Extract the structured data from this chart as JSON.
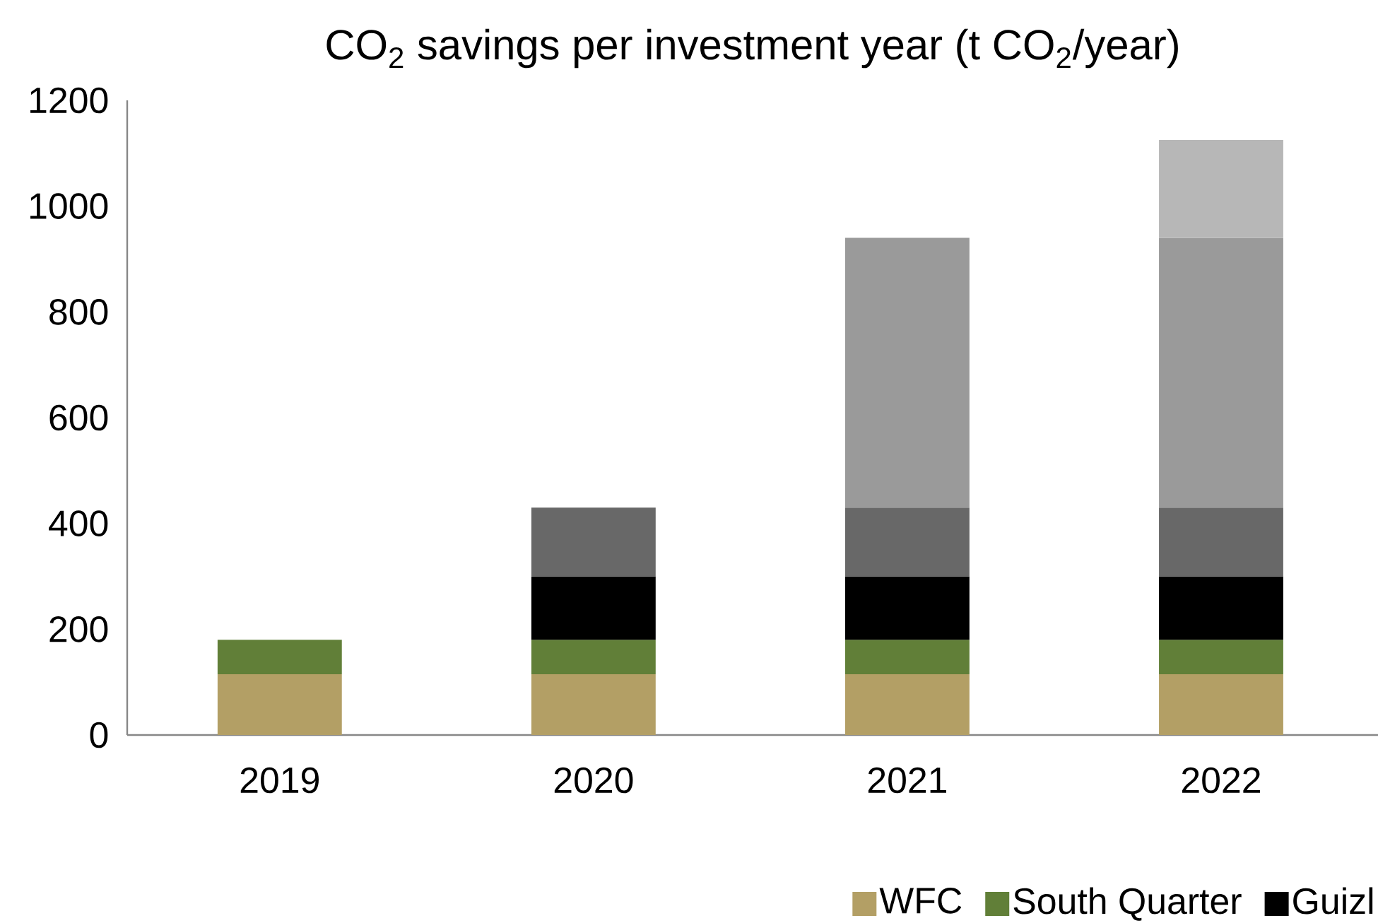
{
  "chart_data": {
    "type": "bar",
    "stacked": true,
    "title": "CO$_{2}$ savings per investment year (t CO$_{2}$/year)",
    "categories": [
      "2019",
      "2020",
      "2021",
      "2022"
    ],
    "series": [
      {
        "name": "WFC",
        "color": "#b39f65",
        "values": [
          115,
          115,
          115,
          115
        ]
      },
      {
        "name": "South Quarter",
        "color": "#617f38",
        "values": [
          65,
          65,
          65,
          65
        ]
      },
      {
        "name": "Guizl",
        "color": "#000000",
        "values": [
          null,
          120,
          120,
          120
        ]
      },
      {
        "color": "#686868",
        "values": [
          null,
          130,
          130,
          130
        ]
      },
      {
        "color": "#9a9a9a",
        "values": [
          null,
          null,
          510,
          510
        ]
      },
      {
        "color": "#b7b7b7",
        "values": [
          null,
          null,
          null,
          185
        ]
      }
    ],
    "ylim": [
      0,
      1200
    ],
    "yticks": [
      0,
      200,
      400,
      600,
      800,
      1000,
      1200
    ],
    "grid": false,
    "legend": "bottom right"
  }
}
